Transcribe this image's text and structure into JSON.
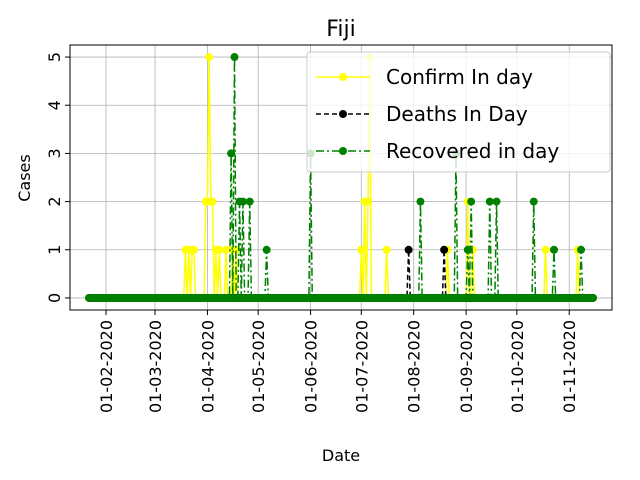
{
  "chart_data": {
    "type": "line",
    "title": "Fiji",
    "xlabel": "Date",
    "ylabel": "Cases",
    "x_range": [
      "2020-01-22",
      "2020-11-15"
    ],
    "ylim": [
      -0.25,
      5.25
    ],
    "yticks": [
      0,
      1,
      2,
      3,
      4,
      5
    ],
    "xticks": [
      "01-02-2020",
      "01-03-2020",
      "01-04-2020",
      "01-05-2020",
      "01-06-2020",
      "01-07-2020",
      "01-08-2020",
      "01-09-2020",
      "01-10-2020",
      "01-11-2020"
    ],
    "grid": true,
    "legend_position": "top-right",
    "series": [
      {
        "name": "Confirm In day",
        "color": "#ffff00",
        "style": "solid",
        "points": [
          [
            "2020-03-19",
            1
          ],
          [
            "2020-03-21",
            1
          ],
          [
            "2020-03-23",
            1
          ],
          [
            "2020-03-24",
            1
          ],
          [
            "2020-03-31",
            2
          ],
          [
            "2020-04-01",
            2
          ],
          [
            "2020-04-02",
            5
          ],
          [
            "2020-04-03",
            2
          ],
          [
            "2020-04-04",
            2
          ],
          [
            "2020-04-06",
            1
          ],
          [
            "2020-04-08",
            1
          ],
          [
            "2020-04-12",
            1
          ],
          [
            "2020-04-16",
            1
          ],
          [
            "2020-04-18",
            1
          ],
          [
            "2020-07-01",
            1
          ],
          [
            "2020-07-03",
            2
          ],
          [
            "2020-07-05",
            2
          ],
          [
            "2020-07-06",
            5
          ],
          [
            "2020-07-16",
            1
          ],
          [
            "2020-08-21",
            1
          ],
          [
            "2020-09-02",
            2
          ],
          [
            "2020-09-05",
            1
          ],
          [
            "2020-10-18",
            1
          ],
          [
            "2020-11-06",
            1
          ]
        ]
      },
      {
        "name": "Deaths In Day",
        "color": "#000000",
        "style": "dashed",
        "points": [
          [
            "2020-07-29",
            1
          ],
          [
            "2020-08-19",
            1
          ]
        ]
      },
      {
        "name": "Recovered in day",
        "color": "#008000",
        "style": "dashdot",
        "points": [
          [
            "2020-04-15",
            3
          ],
          [
            "2020-04-17",
            5
          ],
          [
            "2020-04-20",
            2
          ],
          [
            "2020-04-22",
            2
          ],
          [
            "2020-04-26",
            2
          ],
          [
            "2020-05-06",
            1
          ],
          [
            "2020-06-01",
            3
          ],
          [
            "2020-08-05",
            2
          ],
          [
            "2020-08-26",
            3
          ],
          [
            "2020-09-02",
            1
          ],
          [
            "2020-09-04",
            2
          ],
          [
            "2020-09-15",
            2
          ],
          [
            "2020-09-19",
            2
          ],
          [
            "2020-10-11",
            2
          ],
          [
            "2020-10-23",
            1
          ],
          [
            "2020-11-08",
            1
          ]
        ]
      }
    ]
  }
}
